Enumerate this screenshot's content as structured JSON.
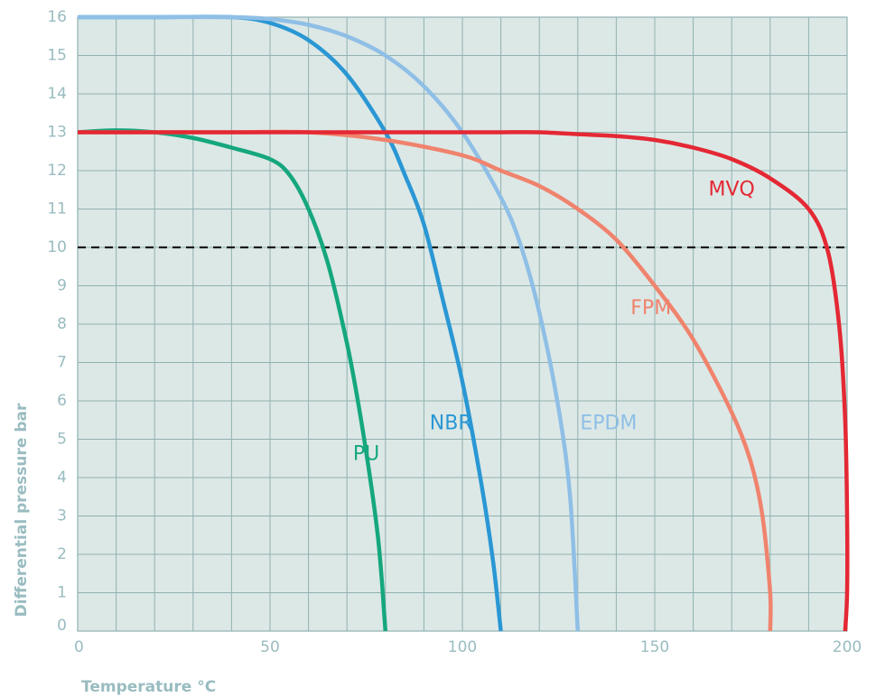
{
  "chart_data": {
    "type": "line",
    "title": "",
    "xlabel": "Temperature °C",
    "ylabel": "Differential pressure bar",
    "xlim": [
      0,
      200
    ],
    "ylim": [
      0,
      16
    ],
    "x_ticks": [
      0,
      50,
      100,
      150,
      200
    ],
    "y_ticks": [
      0,
      1,
      2,
      3,
      4,
      5,
      6,
      7,
      8,
      9,
      10,
      11,
      12,
      13,
      14,
      15,
      16
    ],
    "x_tick_labels": [
      "0",
      "50",
      "100",
      "150",
      "200"
    ],
    "y_tick_labels": [
      "0",
      "1",
      "2",
      "3",
      "4",
      "5",
      "6",
      "7",
      "8",
      "9",
      "10",
      "11",
      "12",
      "13",
      "14",
      "15",
      "16"
    ],
    "grid": true,
    "grid_x_step": 10,
    "grid_y_step": 1,
    "background_color": "#dce8e6",
    "grid_color": "#8fb2b0",
    "reference_line": {
      "y": 10,
      "style": "dashed",
      "color": "#1a1a1a"
    },
    "series": [
      {
        "name": "PU",
        "color": "#15a77e",
        "label_at": [
          75,
          4.6
        ],
        "x": [
          0,
          10,
          20,
          30,
          40,
          50,
          55,
          60,
          65,
          70,
          73,
          76,
          78,
          79,
          79.5,
          80
        ],
        "y": [
          13,
          13.05,
          13,
          12.85,
          12.6,
          12.3,
          11.9,
          11.0,
          9.6,
          7.5,
          5.9,
          4.0,
          2.5,
          1.4,
          0.7,
          0
        ]
      },
      {
        "name": "NBR",
        "color": "#2a97d4",
        "label_at": [
          97,
          5.4
        ],
        "x": [
          0,
          20,
          40,
          50,
          60,
          70,
          80,
          85,
          90,
          95,
          100,
          105,
          108,
          110
        ],
        "y": [
          16,
          16,
          16,
          15.85,
          15.4,
          14.5,
          13.0,
          11.9,
          10.6,
          8.6,
          6.5,
          3.8,
          1.8,
          0
        ]
      },
      {
        "name": "EPDM",
        "color": "#8fbfe6",
        "label_at": [
          138,
          5.4
        ],
        "x": [
          0,
          20,
          40,
          50,
          60,
          70,
          80,
          90,
          100,
          110,
          115,
          120,
          125,
          128,
          130
        ],
        "y": [
          16,
          16,
          16,
          15.95,
          15.8,
          15.5,
          15.0,
          14.2,
          13.0,
          11.3,
          10.1,
          8.3,
          5.8,
          3.5,
          0
        ]
      },
      {
        "name": "FPM",
        "color": "#f0836d",
        "label_at": [
          149,
          8.4
        ],
        "x": [
          0,
          20,
          40,
          60,
          80,
          100,
          110,
          120,
          130,
          140,
          150,
          160,
          170,
          175,
          178,
          180,
          180
        ],
        "y": [
          13,
          13,
          13,
          13,
          12.8,
          12.4,
          12.0,
          11.6,
          11.0,
          10.2,
          9.0,
          7.6,
          5.7,
          4.4,
          3.0,
          1.0,
          0
        ]
      },
      {
        "name": "MVQ",
        "color": "#e42834",
        "label_at": [
          170,
          11.5
        ],
        "x": [
          0,
          20,
          40,
          60,
          80,
          100,
          110,
          120,
          130,
          140,
          150,
          160,
          170,
          180,
          190,
          195,
          198,
          199.5,
          200,
          200,
          199.5
        ],
        "y": [
          13,
          13,
          13,
          13,
          13,
          13,
          13.0,
          13.0,
          12.95,
          12.9,
          12.8,
          12.6,
          12.3,
          11.8,
          11.0,
          9.9,
          7.9,
          5.5,
          3.0,
          1.0,
          0
        ]
      }
    ]
  }
}
